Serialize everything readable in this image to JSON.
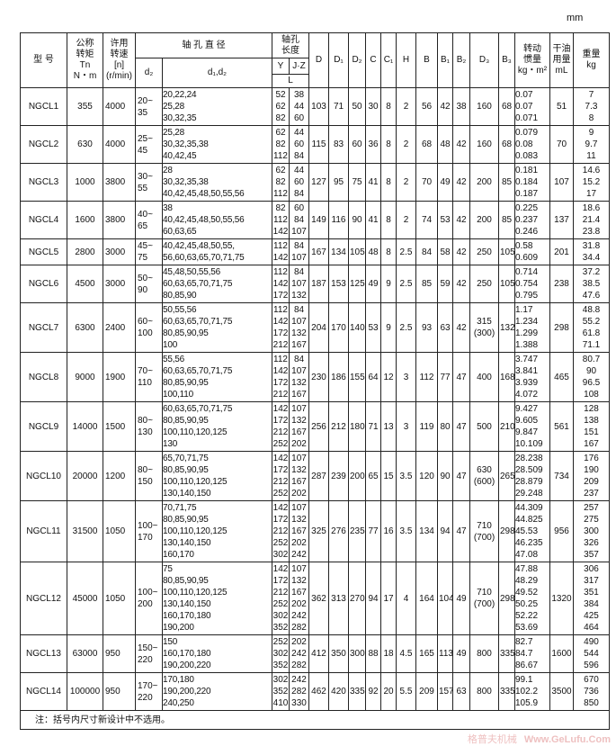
{
  "unit": "mm",
  "header": {
    "model": "型 号",
    "torque": [
      "公称",
      "转矩",
      "Tn",
      "N・m"
    ],
    "speed": [
      "许用",
      "转速",
      "[n]",
      "(r/min)"
    ],
    "bore_diameter": "轴 孔 直 径",
    "d_z": "d₂",
    "d1d2": "d₁,d₂",
    "bore_length": [
      "轴孔",
      "长度"
    ],
    "Y": "Y",
    "JZ": "J·Z",
    "L": "L",
    "dims": [
      "D",
      "D₁",
      "D₂",
      "C",
      "C₁",
      "H",
      "B",
      "B₁",
      "B₂",
      "D₃",
      "B₃"
    ],
    "inertia": [
      "转动",
      "惯量",
      "kg・m²"
    ],
    "oil": [
      "干油",
      "用量",
      "mL"
    ],
    "weight": [
      "重量",
      "kg"
    ]
  },
  "rows": [
    {
      "model": "NGCL1",
      "Tn": "355",
      "n": "4000",
      "dz": [
        "20~",
        "35"
      ],
      "d": [
        "20,22,24",
        "25,28",
        "30,32,35"
      ],
      "Y": [
        "52",
        "62",
        "82"
      ],
      "JZ": [
        "38",
        "44",
        "60"
      ],
      "dims": [
        "103",
        "71",
        "50",
        "30",
        "8",
        "2",
        "56",
        "42",
        "38",
        "160",
        "68"
      ],
      "inertia": [
        "0.07",
        "0.07",
        "0.071"
      ],
      "oil": "51",
      "weight": [
        "7",
        "7.3",
        "8"
      ]
    },
    {
      "model": "NGCL2",
      "Tn": "630",
      "n": "4000",
      "dz": [
        "25~",
        "45"
      ],
      "d": [
        "25,28",
        "30,32,35,38",
        "40,42,45"
      ],
      "Y": [
        "62",
        "82",
        "112"
      ],
      "JZ": [
        "44",
        "60",
        "84"
      ],
      "dims": [
        "115",
        "83",
        "60",
        "36",
        "8",
        "2",
        "68",
        "48",
        "42",
        "160",
        "68"
      ],
      "inertia": [
        "0.079",
        "0.08",
        "0.083"
      ],
      "oil": "70",
      "weight": [
        "9",
        "9.7",
        "11"
      ]
    },
    {
      "model": "NGCL3",
      "Tn": "1000",
      "n": "3800",
      "dz": [
        "30~",
        "55"
      ],
      "d": [
        "28",
        "30,32,35,38",
        "40,42,45,48,50,55,56"
      ],
      "Y": [
        "62",
        "82",
        "112"
      ],
      "JZ": [
        "44",
        "60",
        "84"
      ],
      "dims": [
        "127",
        "95",
        "75",
        "41",
        "8",
        "2",
        "70",
        "49",
        "42",
        "200",
        "85"
      ],
      "inertia": [
        "0.181",
        "0.184",
        "0.187"
      ],
      "oil": "107",
      "weight": [
        "14.6",
        "15.2",
        "17"
      ]
    },
    {
      "model": "NGCL4",
      "Tn": "1600",
      "n": "3800",
      "dz": [
        "40~",
        "65"
      ],
      "d": [
        "38",
        "40,42,45,48,50,55,56",
        "60,63,65"
      ],
      "Y": [
        "82",
        "112",
        "142"
      ],
      "JZ": [
        "60",
        "84",
        "107"
      ],
      "dims": [
        "149",
        "116",
        "90",
        "41",
        "8",
        "2",
        "74",
        "53",
        "42",
        "200",
        "85"
      ],
      "inertia": [
        "0.225",
        "0.237",
        "0.246"
      ],
      "oil": "137",
      "weight": [
        "18.6",
        "21.4",
        "23.8"
      ]
    },
    {
      "model": "NGCL5",
      "Tn": "2800",
      "n": "3000",
      "dz": [
        "45~",
        "75"
      ],
      "d": [
        "40,42,45,48,50,55,",
        "56,60,63,65,70,71,75"
      ],
      "Y": [
        "112",
        "142"
      ],
      "JZ": [
        "84",
        "107"
      ],
      "dims": [
        "167",
        "134",
        "105",
        "48",
        "8",
        "2.5",
        "84",
        "58",
        "42",
        "250",
        "105"
      ],
      "inertia": [
        "0.58",
        "0.609"
      ],
      "oil": "201",
      "weight": [
        "31.8",
        "34.4"
      ]
    },
    {
      "model": "NGCL6",
      "Tn": "4500",
      "n": "3000",
      "dz": [
        "50~",
        "90"
      ],
      "d": [
        "45,48,50,55,56",
        "60,63,65,70,71,75",
        "80,85,90"
      ],
      "Y": [
        "112",
        "142",
        "172"
      ],
      "JZ": [
        "84",
        "107",
        "132"
      ],
      "dims": [
        "187",
        "153",
        "125",
        "49",
        "9",
        "2.5",
        "85",
        "59",
        "42",
        "250",
        "105"
      ],
      "inertia": [
        "0.714",
        "0.754",
        "0.795"
      ],
      "oil": "238",
      "weight": [
        "37.2",
        "38.5",
        "47.6"
      ]
    },
    {
      "model": "NGCL7",
      "Tn": "6300",
      "n": "2400",
      "dz": [
        "60~",
        "100"
      ],
      "d": [
        "50,55,56",
        "60,63,65,70,71,75",
        "80,85,90,95",
        "100"
      ],
      "Y": [
        "112",
        "142",
        "172",
        "212"
      ],
      "JZ": [
        "84",
        "107",
        "132",
        "167"
      ],
      "dims": [
        "204",
        "170",
        "140",
        "53",
        "9",
        "2.5",
        "93",
        "63",
        "42",
        "315\n(300)",
        "132"
      ],
      "inertia": [
        "1.17",
        "1.234",
        "1.299",
        "1.388"
      ],
      "oil": "298",
      "weight": [
        "48.8",
        "55.2",
        "61.8",
        "71.1"
      ]
    },
    {
      "model": "NGCL8",
      "Tn": "9000",
      "n": "1900",
      "dz": [
        "70~",
        "110"
      ],
      "d": [
        "55,56",
        "60,63,65,70,71,75",
        "80,85,90,95",
        "100,110"
      ],
      "Y": [
        "112",
        "142",
        "172",
        "212"
      ],
      "JZ": [
        "84",
        "107",
        "132",
        "167"
      ],
      "dims": [
        "230",
        "186",
        "155",
        "64",
        "12",
        "3",
        "112",
        "77",
        "47",
        "400",
        "168"
      ],
      "inertia": [
        "3.747",
        "3.841",
        "3.939",
        "4.072"
      ],
      "oil": "465",
      "weight": [
        "80.7",
        "90",
        "96.5",
        "108"
      ]
    },
    {
      "model": "NGCL9",
      "Tn": "14000",
      "n": "1500",
      "dz": [
        "80~",
        "130"
      ],
      "d": [
        "60,63,65,70,71,75",
        "80,85,90,95",
        "100,110,120,125",
        "130"
      ],
      "Y": [
        "142",
        "172",
        "212",
        "252"
      ],
      "JZ": [
        "107",
        "132",
        "167",
        "202"
      ],
      "dims": [
        "256",
        "212",
        "180",
        "71",
        "13",
        "3",
        "119",
        "80",
        "47",
        "500",
        "210"
      ],
      "inertia": [
        "9.427",
        "9.605",
        "9.847",
        "10.109"
      ],
      "oil": "561",
      "weight": [
        "128",
        "138",
        "151",
        "167"
      ]
    },
    {
      "model": "NGCL10",
      "Tn": "20000",
      "n": "1200",
      "dz": [
        "80~",
        "150"
      ],
      "d": [
        "65,70,71,75",
        "80,85,90,95",
        "100,110,120,125",
        "130,140,150"
      ],
      "Y": [
        "142",
        "172",
        "212",
        "252"
      ],
      "JZ": [
        "107",
        "132",
        "167",
        "202"
      ],
      "dims": [
        "287",
        "239",
        "200",
        "65",
        "15",
        "3.5",
        "120",
        "90",
        "47",
        "630\n(600)",
        "265"
      ],
      "inertia": [
        "28.238",
        "28.509",
        "28.879",
        "29.248"
      ],
      "oil": "734",
      "weight": [
        "176",
        "190",
        "209",
        "237"
      ]
    },
    {
      "model": "NGCL11",
      "Tn": "31500",
      "n": "1050",
      "dz": [
        "100~",
        "170"
      ],
      "d": [
        "70,71,75",
        "80,85,90,95",
        "100,110,120,125",
        "130,140,150",
        "160,170"
      ],
      "Y": [
        "142",
        "172",
        "212",
        "252",
        "302"
      ],
      "JZ": [
        "107",
        "132",
        "167",
        "202",
        "242"
      ],
      "dims": [
        "325",
        "276",
        "235",
        "77",
        "16",
        "3.5",
        "134",
        "94",
        "47",
        "710\n(700)",
        "298"
      ],
      "inertia": [
        "44.309",
        "44.825",
        "45.53",
        "46.235",
        "47.08"
      ],
      "oil": "956",
      "weight": [
        "257",
        "275",
        "300",
        "326",
        "357"
      ]
    },
    {
      "model": "NGCL12",
      "Tn": "45000",
      "n": "1050",
      "dz": [
        "100~",
        "200"
      ],
      "d": [
        "75",
        "80,85,90,95",
        "100,110,120,125",
        "130,140,150",
        "160,170,180",
        "190,200"
      ],
      "Y": [
        "142",
        "172",
        "212",
        "252",
        "302",
        "352"
      ],
      "JZ": [
        "107",
        "132",
        "167",
        "202",
        "242",
        "282"
      ],
      "dims": [
        "362",
        "313",
        "270",
        "94",
        "17",
        "4",
        "164",
        "104",
        "49",
        "710\n(700)",
        "298"
      ],
      "inertia": [
        "47.88",
        "48.29",
        "49.52",
        "50.25",
        "52.22",
        "53.69"
      ],
      "oil": "1320",
      "weight": [
        "306",
        "317",
        "351",
        "384",
        "425",
        "464"
      ]
    },
    {
      "model": "NGCL13",
      "Tn": "63000",
      "n": "950",
      "dz": [
        "150~",
        "220"
      ],
      "d": [
        "150",
        "160,170,180",
        "190,200,220"
      ],
      "Y": [
        "252",
        "302",
        "352"
      ],
      "JZ": [
        "202",
        "242",
        "282"
      ],
      "dims": [
        "412",
        "350",
        "300",
        "88",
        "18",
        "4.5",
        "165",
        "113",
        "49",
        "800",
        "335"
      ],
      "inertia": [
        "82.7",
        "84.7",
        "86.67"
      ],
      "oil": "1600",
      "weight": [
        "490",
        "544",
        "596"
      ]
    },
    {
      "model": "NGCL14",
      "Tn": "100000",
      "n": "950",
      "dz": [
        "170~",
        "220"
      ],
      "d": [
        "170,180",
        "190,200,220",
        "240,250"
      ],
      "Y": [
        "302",
        "352",
        "410"
      ],
      "JZ": [
        "242",
        "282",
        "330"
      ],
      "dims": [
        "462",
        "420",
        "335",
        "92",
        "20",
        "5.5",
        "209",
        "157",
        "63",
        "800",
        "335"
      ],
      "inertia": [
        "99.1",
        "102.2",
        "105.9"
      ],
      "oil": "3500",
      "weight": [
        "670",
        "736",
        "850"
      ]
    }
  ],
  "note": "注：括号内尺寸新设计中不选用。",
  "watermark": {
    "cn": "格普夫机械",
    "url": "Www.GeLufu.Com",
    "color": "#e8a6a6"
  }
}
